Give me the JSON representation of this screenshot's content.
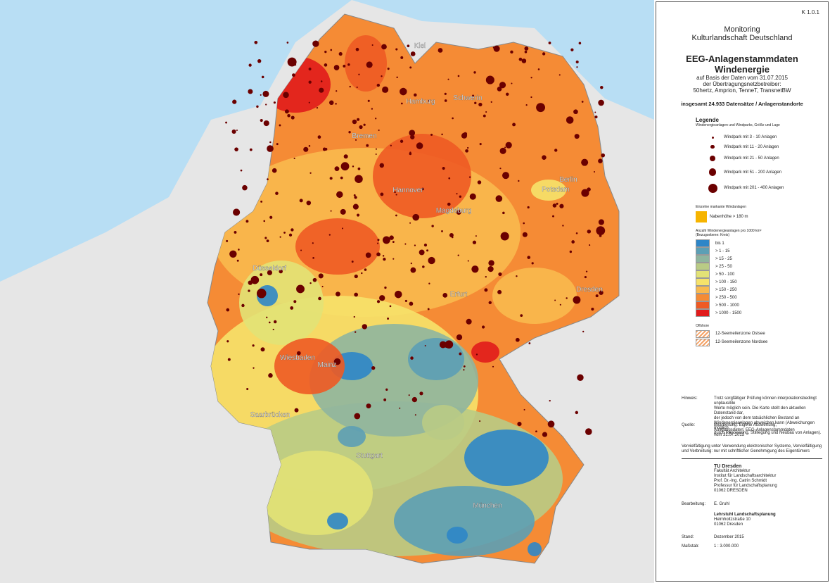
{
  "map": {
    "cities": [
      "Kiel",
      "Hamburg",
      "Schwerin",
      "Bremen",
      "Berlin",
      "Potsdam",
      "Hannover",
      "Magdeburg",
      "Düsseldorf",
      "Dresden",
      "Erfurt",
      "Wiesbaden",
      "Mainz",
      "Saarbrücken",
      "Stuttgart",
      "München"
    ]
  },
  "panel": {
    "code": "K 1.0.1",
    "project": [
      "Monitoring",
      "Kulturlandschaft Deutschland"
    ],
    "title": [
      "EEG-Anlagenstammdaten",
      "Windenergie"
    ],
    "subtitle": [
      "auf Basis der Daten vom 31.07.2015",
      "der Übertragungsnetzbetreiber:",
      "50hertz, Amprion, TenneT, TransnetBW"
    ],
    "total": "insgesamt 24.933 Datensätze / Anlagenstandorte",
    "legend": {
      "title": "Legende",
      "subtitle": "Windenergieanlagen und Windparks, Größe und Lage",
      "parks": [
        "Windpark mit 3 - 10 Anlagen",
        "Windpark mit 11 - 20 Anlagen",
        "Windpark mit 21 - 50 Anlagen",
        "Windpark mit 51 - 200 Anlagen",
        "Windpark mit 201 - 400 Anlagen"
      ],
      "tall_title": "Einzelne markante Windanlagen",
      "tall": "Nabenhöhe > 180 m",
      "density_title": [
        "Anzahl Windenergieanlagen pro 1000 km²",
        "(Bezugsebene: Kreis)"
      ],
      "classes": [
        {
          "label": "bis 1",
          "color": "#2e86c8"
        },
        {
          "label": "> 1 - 15",
          "color": "#5c9fb5"
        },
        {
          "label": "> 15 - 25",
          "color": "#8fb59e"
        },
        {
          "label": "> 25 - 50",
          "color": "#b9cb85"
        },
        {
          "label": "> 50 - 100",
          "color": "#e2e276"
        },
        {
          "label": "> 100 - 150",
          "color": "#f6e26a"
        },
        {
          "label": "> 150 - 250",
          "color": "#f9b94e"
        },
        {
          "label": "> 250 - 500",
          "color": "#f58b35"
        },
        {
          "label": "> 500 - 1000",
          "color": "#ee5a24"
        },
        {
          "label": "> 1000 - 1500",
          "color": "#e11b1b"
        }
      ],
      "offshore_title": "Offshore",
      "offshore": [
        "12-Seemeilenzone Ostsee",
        "12-Seemeilenzone Nordsee"
      ]
    },
    "notes": [
      {
        "label": "Hinweis:",
        "text": [
          "Trotz sorgfältiger Prüfung können interpolationsbedingt unplausible",
          "Werte möglich sein. Die Karte stellt den aktuellen Datenstand dar,",
          "der jedoch von dem tatsächlichen Bestand an",
          "Windenergieanlagen abweichen kann (Abweichungen möglich",
          "durch Repowering, Stilllegung und Neubau von Anlagen)."
        ]
      },
      {
        "label": "Quelle:",
        "text": [
          "Bearbeitung: Eigene Auswertung,",
          "Ausgangsdaten: EEG-Anlagenstammdaten",
          "vom 31.07.2015"
        ]
      }
    ],
    "copyright": [
      "Vervielfältigung unter Verwendung elektronischer Systeme, Vervielfältigung",
      "und Verbreitung: nur mit schriftlicher Genehmigung des Eigentümers"
    ],
    "institution": [
      "TU Dresden",
      "Fakultät Architektur",
      "Institut für Landschaftsarchitektur",
      "Prof. Dr.-Ing. Catrin Schmidt",
      "Professur für Landschaftsplanung",
      "01062 DRESDEN"
    ],
    "editor": {
      "label": "Bearbeitung:",
      "text": "E. Gruhl"
    },
    "chair": [
      "Lehrstuhl Landschaftsplanung",
      "Helmholtzstraße 10",
      "01062 Dresden"
    ],
    "date": {
      "label": "Stand:",
      "text": "Dezember 2015"
    },
    "scale": {
      "label": "Maßstab:",
      "text": "1 : 3.000.000"
    }
  }
}
